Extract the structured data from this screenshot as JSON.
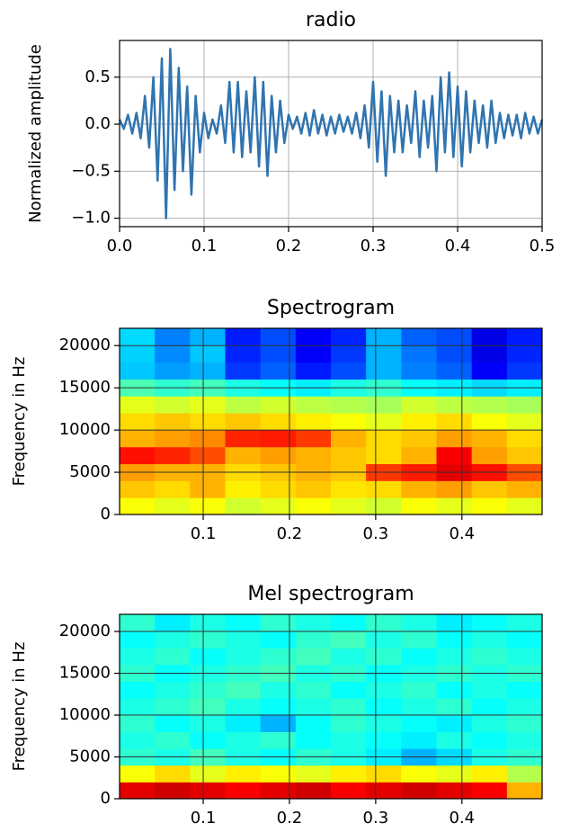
{
  "chart_data": [
    {
      "type": "line",
      "title": "radio",
      "y_label": "Normalized amplitude",
      "color": "#2f74b0",
      "grid": true,
      "xlim": [
        0,
        0.5
      ],
      "ylim": [
        -1.09,
        0.89
      ],
      "xticks": [
        {
          "value": 0,
          "label": "0.0"
        },
        0.1,
        0.2,
        0.3,
        0.4,
        0.5
      ],
      "yticks": [
        {
          "value": -1,
          "label": "−1.0"
        },
        {
          "value": -0.5,
          "label": "−0.5"
        },
        {
          "value": 0,
          "label": "0.0"
        },
        0.5
      ],
      "x": [
        0,
        0.005,
        0.01,
        0.015,
        0.02,
        0.025,
        0.03,
        0.035,
        0.04,
        0.045,
        0.05,
        0.055,
        0.06,
        0.065,
        0.07,
        0.075,
        0.08,
        0.085,
        0.09,
        0.095,
        0.1,
        0.105,
        0.11,
        0.115,
        0.12,
        0.125,
        0.13,
        0.135,
        0.14,
        0.145,
        0.15,
        0.155,
        0.16,
        0.165,
        0.17,
        0.175,
        0.18,
        0.185,
        0.19,
        0.195,
        0.2,
        0.205,
        0.21,
        0.215,
        0.22,
        0.225,
        0.23,
        0.235,
        0.24,
        0.245,
        0.25,
        0.255,
        0.26,
        0.265,
        0.27,
        0.275,
        0.28,
        0.285,
        0.29,
        0.295,
        0.3,
        0.305,
        0.31,
        0.315,
        0.32,
        0.325,
        0.33,
        0.335,
        0.34,
        0.345,
        0.35,
        0.355,
        0.36,
        0.365,
        0.37,
        0.375,
        0.38,
        0.385,
        0.39,
        0.395,
        0.4,
        0.405,
        0.41,
        0.415,
        0.42,
        0.425,
        0.43,
        0.435,
        0.44,
        0.445,
        0.45,
        0.455,
        0.46,
        0.465,
        0.47,
        0.475,
        0.48,
        0.485,
        0.49,
        0.495,
        0.5
      ],
      "values": [
        0.05,
        -0.05,
        0.1,
        -0.1,
        0.12,
        -0.15,
        0.3,
        -0.25,
        0.5,
        -0.6,
        0.7,
        -1.0,
        0.8,
        -0.7,
        0.6,
        -0.5,
        0.4,
        -0.75,
        0.3,
        -0.3,
        0.12,
        -0.15,
        0.05,
        -0.1,
        0.2,
        -0.2,
        0.45,
        -0.3,
        0.45,
        -0.35,
        0.35,
        -0.3,
        0.5,
        -0.45,
        0.45,
        -0.55,
        0.3,
        -0.3,
        0.25,
        -0.2,
        0.1,
        -0.05,
        0.08,
        -0.1,
        0.12,
        -0.12,
        0.15,
        -0.1,
        0.1,
        -0.12,
        0.08,
        -0.1,
        0.1,
        -0.08,
        0.08,
        -0.1,
        0.12,
        -0.15,
        0.2,
        -0.25,
        0.45,
        -0.4,
        0.35,
        -0.55,
        0.3,
        -0.3,
        0.25,
        -0.3,
        0.2,
        -0.2,
        0.35,
        -0.35,
        0.25,
        -0.25,
        0.3,
        -0.5,
        0.5,
        -0.3,
        0.55,
        -0.35,
        0.4,
        -0.45,
        0.35,
        -0.3,
        0.25,
        -0.2,
        0.2,
        -0.25,
        0.25,
        -0.2,
        0.12,
        -0.15,
        0.1,
        -0.12,
        0.1,
        -0.15,
        0.12,
        -0.1,
        0.08,
        -0.1,
        0.05
      ]
    },
    {
      "type": "heatmap",
      "title": "Spectrogram",
      "y_label": "Frequency in Hz",
      "colormap": "jet",
      "grid": true,
      "xlim": [
        0.003,
        0.493
      ],
      "ylim": [
        0,
        22050
      ],
      "xticks": [
        0.1,
        0.2,
        0.3,
        0.4
      ],
      "yticks": [
        0,
        5000,
        10000,
        15000,
        20000
      ],
      "z": [
        [
          0.62,
          0.6,
          0.62,
          0.58,
          0.6,
          0.62,
          0.6,
          0.58,
          0.62,
          0.6,
          0.62,
          0.6
        ],
        [
          0.68,
          0.66,
          0.7,
          0.64,
          0.66,
          0.68,
          0.65,
          0.66,
          0.7,
          0.72,
          0.68,
          0.7
        ],
        [
          0.72,
          0.7,
          0.7,
          0.66,
          0.68,
          0.7,
          0.68,
          0.82,
          0.85,
          0.9,
          0.86,
          0.8
        ],
        [
          0.86,
          0.84,
          0.8,
          0.7,
          0.72,
          0.7,
          0.68,
          0.66,
          0.7,
          0.88,
          0.72,
          0.68
        ],
        [
          0.7,
          0.72,
          0.74,
          0.84,
          0.85,
          0.82,
          0.7,
          0.66,
          0.68,
          0.72,
          0.7,
          0.66
        ],
        [
          0.66,
          0.68,
          0.66,
          0.68,
          0.66,
          0.64,
          0.62,
          0.6,
          0.64,
          0.66,
          0.62,
          0.6
        ],
        [
          0.6,
          0.58,
          0.6,
          0.56,
          0.58,
          0.56,
          0.55,
          0.54,
          0.58,
          0.56,
          0.55,
          0.54
        ],
        [
          0.45,
          0.42,
          0.44,
          0.4,
          0.38,
          0.36,
          0.4,
          0.42,
          0.38,
          0.36,
          0.34,
          0.36
        ],
        [
          0.32,
          0.28,
          0.3,
          0.18,
          0.22,
          0.15,
          0.2,
          0.3,
          0.25,
          0.22,
          0.12,
          0.18
        ],
        [
          0.33,
          0.26,
          0.32,
          0.16,
          0.2,
          0.12,
          0.18,
          0.3,
          0.24,
          0.2,
          0.1,
          0.16
        ],
        [
          0.34,
          0.25,
          0.3,
          0.15,
          0.2,
          0.12,
          0.16,
          0.3,
          0.22,
          0.2,
          0.1,
          0.15
        ]
      ]
    },
    {
      "type": "heatmap",
      "title": "Mel spectrogram",
      "y_label": "Frequency in Hz",
      "colormap": "jet",
      "grid": true,
      "xlim": [
        0.003,
        0.493
      ],
      "ylim": [
        0,
        22050
      ],
      "xticks": [
        0.1,
        0.2,
        0.3,
        0.4
      ],
      "yticks": [
        0,
        5000,
        10000,
        15000,
        20000
      ],
      "z": [
        [
          0.9,
          0.92,
          0.9,
          0.88,
          0.9,
          0.92,
          0.88,
          0.9,
          0.92,
          0.9,
          0.88,
          0.7
        ],
        [
          0.62,
          0.66,
          0.6,
          0.64,
          0.62,
          0.6,
          0.64,
          0.66,
          0.62,
          0.6,
          0.64,
          0.55
        ],
        [
          0.42,
          0.4,
          0.44,
          0.4,
          0.38,
          0.42,
          0.4,
          0.36,
          0.3,
          0.34,
          0.4,
          0.42
        ],
        [
          0.4,
          0.42,
          0.38,
          0.4,
          0.42,
          0.38,
          0.4,
          0.38,
          0.36,
          0.4,
          0.38,
          0.4
        ],
        [
          0.42,
          0.38,
          0.4,
          0.36,
          0.3,
          0.38,
          0.42,
          0.4,
          0.38,
          0.36,
          0.4,
          0.42
        ],
        [
          0.4,
          0.42,
          0.44,
          0.4,
          0.38,
          0.4,
          0.42,
          0.38,
          0.4,
          0.42,
          0.38,
          0.4
        ],
        [
          0.38,
          0.4,
          0.42,
          0.44,
          0.4,
          0.42,
          0.38,
          0.4,
          0.42,
          0.38,
          0.4,
          0.38
        ],
        [
          0.42,
          0.38,
          0.4,
          0.42,
          0.44,
          0.4,
          0.42,
          0.38,
          0.4,
          0.42,
          0.4,
          0.42
        ],
        [
          0.4,
          0.42,
          0.38,
          0.4,
          0.42,
          0.44,
          0.4,
          0.42,
          0.38,
          0.4,
          0.42,
          0.4
        ],
        [
          0.38,
          0.4,
          0.42,
          0.4,
          0.38,
          0.42,
          0.44,
          0.4,
          0.42,
          0.38,
          0.4,
          0.38
        ],
        [
          0.42,
          0.36,
          0.4,
          0.38,
          0.42,
          0.4,
          0.38,
          0.42,
          0.4,
          0.36,
          0.38,
          0.4
        ]
      ]
    }
  ]
}
